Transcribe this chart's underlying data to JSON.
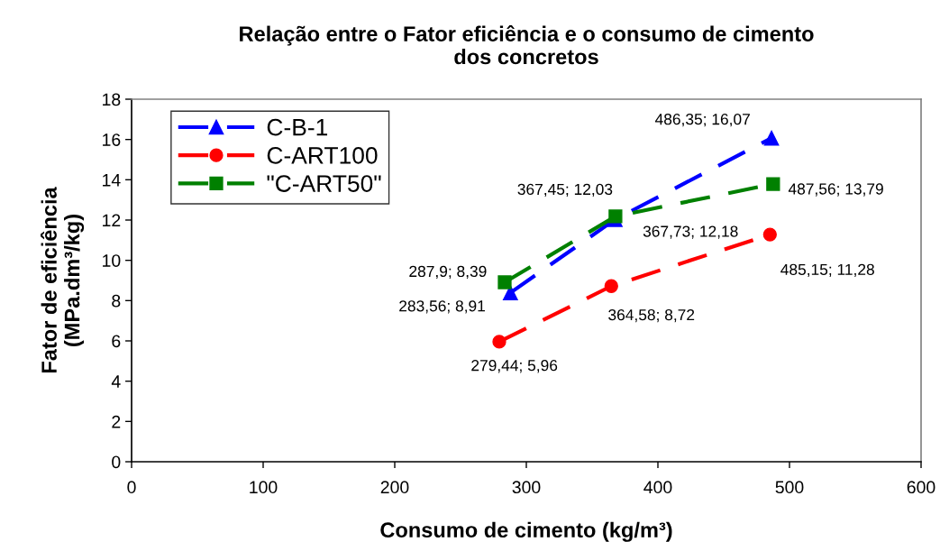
{
  "chart_data": {
    "type": "line",
    "title": "Relação entre o Fator eficiência e o consumo de cimento\ndos concretos",
    "xlabel": "Consumo de cimento (kg/m³)",
    "ylabel": "Fator de eficiência\n(MPa.dm³/kg)",
    "xlim": [
      0,
      600
    ],
    "xticks": [
      0,
      100,
      200,
      300,
      400,
      500,
      600
    ],
    "ylim": [
      0,
      18
    ],
    "yticks": [
      0,
      2,
      4,
      6,
      8,
      10,
      12,
      14,
      16,
      18
    ],
    "grid": false,
    "legend": "top left",
    "line_style": "dashed",
    "series": [
      {
        "name": "C-B-1",
        "color": "#0000ff",
        "marker": "triangle",
        "x": [
          287.9,
          367.45,
          486.35
        ],
        "values": [
          8.39,
          12.03,
          16.07
        ],
        "value_labels": [
          "287,9; 8,39",
          "367,45; 12,03",
          "486,35; 16,07"
        ]
      },
      {
        "name": "C-ART100",
        "color": "#ff0000",
        "marker": "circle",
        "x": [
          279.44,
          364.58,
          485.15
        ],
        "values": [
          5.96,
          8.72,
          11.28
        ],
        "value_labels": [
          "279,44; 5,96",
          "364,58; 8,72",
          "485,15; 11,28"
        ]
      },
      {
        "name": "\"C-ART50\"",
        "color": "#008000",
        "marker": "square",
        "x": [
          283.56,
          367.73,
          487.56
        ],
        "values": [
          8.91,
          12.18,
          13.79
        ],
        "value_labels": [
          "283,56; 8,91",
          "367,73; 12,18",
          "487,56; 13,79"
        ]
      }
    ]
  }
}
